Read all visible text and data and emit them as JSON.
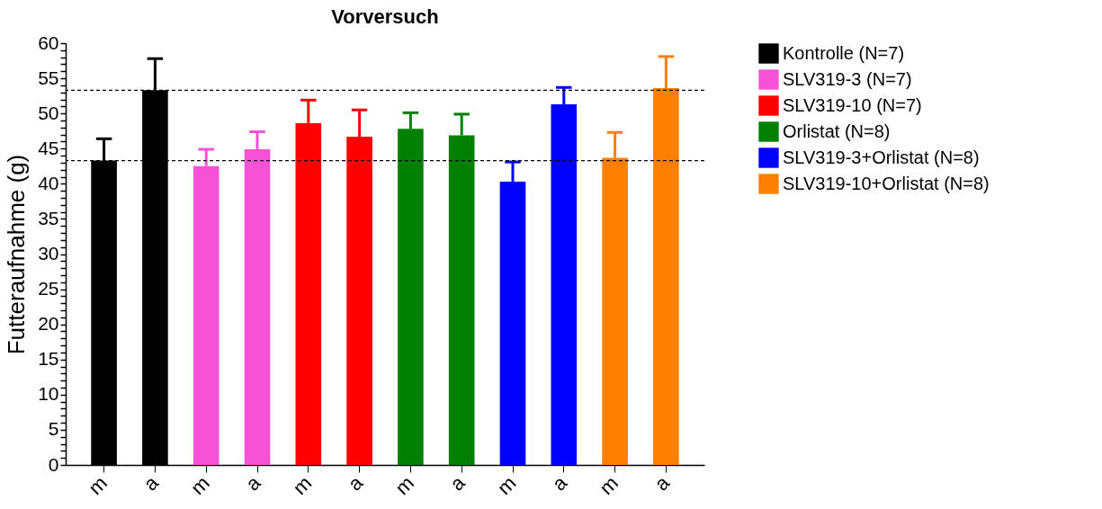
{
  "chart_data": {
    "type": "bar",
    "title": "Vorversuch",
    "ylabel": "Futteraufnahme (g)",
    "categories": [
      "m",
      "a",
      "m",
      "a",
      "m",
      "a",
      "m",
      "a",
      "m",
      "a",
      "m",
      "a"
    ],
    "series": [
      {
        "name": "Kontrolle (N=7)",
        "color": "#000000",
        "values": [
          43.3,
          53.3,
          null,
          null,
          null,
          null,
          null,
          null,
          null,
          null,
          null,
          null
        ],
        "errors": [
          3.1,
          4.5,
          null,
          null,
          null,
          null,
          null,
          null,
          null,
          null,
          null,
          null
        ]
      },
      {
        "name": "SLV319-3 (N=7)",
        "color": "#f652d6",
        "values": [
          null,
          null,
          42.5,
          44.9,
          null,
          null,
          null,
          null,
          null,
          null,
          null,
          null
        ],
        "errors": [
          null,
          null,
          2.4,
          2.5,
          null,
          null,
          null,
          null,
          null,
          null,
          null,
          null
        ]
      },
      {
        "name": "SLV319-10 (N=7)",
        "color": "#ff0000",
        "values": [
          null,
          null,
          null,
          null,
          48.6,
          46.7,
          null,
          null,
          null,
          null,
          null,
          null
        ],
        "errors": [
          null,
          null,
          null,
          null,
          3.3,
          3.8,
          null,
          null,
          null,
          null,
          null,
          null
        ]
      },
      {
        "name": "Orlistat (N=8)",
        "color": "#008000",
        "values": [
          null,
          null,
          null,
          null,
          null,
          null,
          47.8,
          46.9,
          null,
          null,
          null,
          null
        ],
        "errors": [
          null,
          null,
          null,
          null,
          null,
          null,
          2.3,
          3.0,
          null,
          null,
          null,
          null
        ]
      },
      {
        "name": "SLV319-3+Orlistat (N=8)",
        "color": "#0000ff",
        "values": [
          null,
          null,
          null,
          null,
          null,
          null,
          null,
          null,
          40.3,
          51.3,
          null,
          null
        ],
        "errors": [
          null,
          null,
          null,
          null,
          null,
          null,
          null,
          null,
          2.8,
          2.4,
          null,
          null
        ]
      },
      {
        "name": "SLV319-10+Orlistat (N=8)",
        "color": "#ff8000",
        "values": [
          null,
          null,
          null,
          null,
          null,
          null,
          null,
          null,
          null,
          null,
          43.7,
          53.6
        ],
        "errors": [
          null,
          null,
          null,
          null,
          null,
          null,
          null,
          null,
          null,
          null,
          3.6,
          4.5
        ]
      }
    ],
    "ylim": [
      0,
      60
    ],
    "yticks": [
      0,
      {
        "value": 1,
        "label": null
      },
      {
        "value": 2,
        "label": null
      },
      {
        "value": 3,
        "label": null
      },
      {
        "value": 4,
        "label": null
      },
      5,
      {
        "value": 6,
        "label": null
      },
      {
        "value": 7,
        "label": null
      },
      {
        "value": 8,
        "label": null
      },
      {
        "value": 9,
        "label": null
      },
      10,
      {
        "value": 11,
        "label": null
      },
      {
        "value": 12,
        "label": null
      },
      {
        "value": 13,
        "label": null
      },
      {
        "value": 14,
        "label": null
      },
      15,
      {
        "value": 16,
        "label": null
      },
      {
        "value": 17,
        "label": null
      },
      {
        "value": 18,
        "label": null
      },
      {
        "value": 19,
        "label": null
      },
      20,
      {
        "value": 21,
        "label": null
      },
      {
        "value": 22,
        "label": null
      },
      {
        "value": 23,
        "label": null
      },
      {
        "value": 24,
        "label": null
      },
      25,
      {
        "value": 26,
        "label": null
      },
      {
        "value": 27,
        "label": null
      },
      {
        "value": 28,
        "label": null
      },
      {
        "value": 29,
        "label": null
      },
      30,
      {
        "value": 31,
        "label": null
      },
      {
        "value": 32,
        "label": null
      },
      {
        "value": 33,
        "label": null
      },
      {
        "value": 34,
        "label": null
      },
      35,
      {
        "value": 36,
        "label": null
      },
      {
        "value": 37,
        "label": null
      },
      {
        "value": 38,
        "label": null
      },
      {
        "value": 39,
        "label": null
      },
      40,
      {
        "value": 41,
        "label": null
      },
      {
        "value": 42,
        "label": null
      },
      {
        "value": 43,
        "label": null
      },
      {
        "value": 44,
        "label": null
      },
      45,
      {
        "value": 46,
        "label": null
      },
      {
        "value": 47,
        "label": null
      },
      {
        "value": 48,
        "label": null
      },
      {
        "value": 49,
        "label": null
      },
      50,
      {
        "value": 51,
        "label": null
      },
      {
        "value": 52,
        "label": null
      },
      {
        "value": 53,
        "label": null
      },
      {
        "value": 54,
        "label": null
      },
      55,
      {
        "value": 56,
        "label": null
      },
      {
        "value": 57,
        "label": null
      },
      {
        "value": 58,
        "label": null
      },
      {
        "value": 59,
        "label": null
      },
      60
    ],
    "ref_lines": [
      {
        "axis": "y",
        "value": 53.3,
        "label": null,
        "line_style": "dashed",
        "color": "#000000"
      },
      {
        "axis": "y",
        "value": 43.3,
        "label": null,
        "line_style": "dashed",
        "color": "#000000"
      }
    ],
    "grid": false,
    "legend": "right"
  }
}
